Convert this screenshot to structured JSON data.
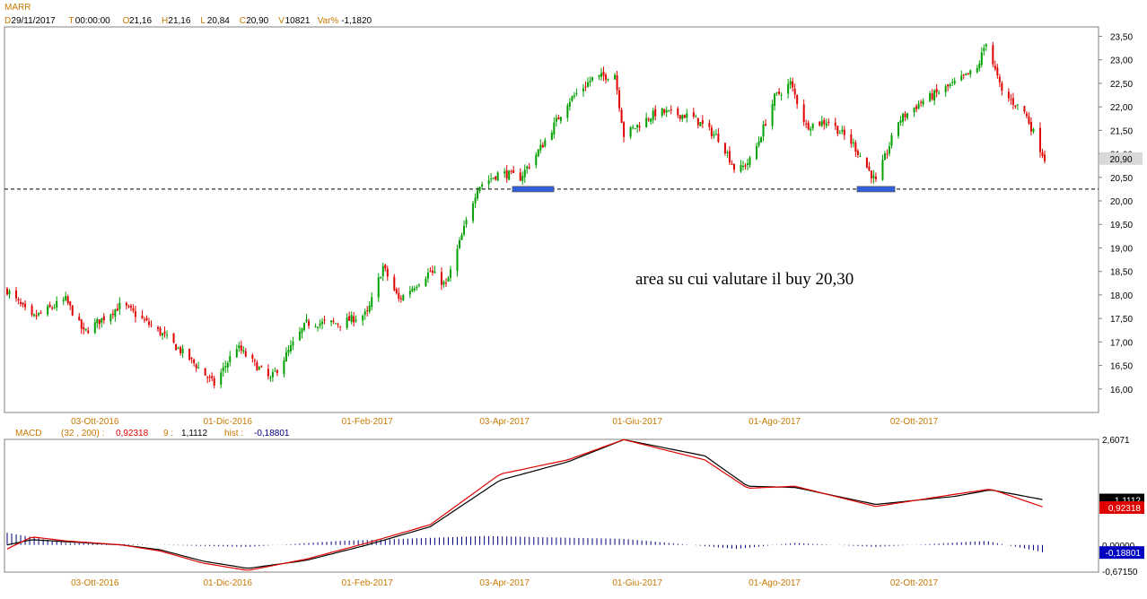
{
  "header": {
    "symbol": "MARR",
    "fields": [
      {
        "key": "D",
        "value": "29/11/2017"
      },
      {
        "key": "T",
        "value": "00:00:00"
      },
      {
        "key": "O",
        "value": "21,16"
      },
      {
        "key": "H",
        "value": "21,16"
      },
      {
        "key": "L",
        "value": "20,84"
      },
      {
        "key": "C",
        "value": "20,90"
      },
      {
        "key": "V",
        "value": "10821"
      },
      {
        "key": "Var%",
        "value": "-1,1820"
      }
    ]
  },
  "price_panel": {
    "last_price_label": "20,90",
    "annotation": "area su cui valutare il buy 20,30"
  },
  "macd_panel": {
    "label": "MACD",
    "params": "(32 , 200) :",
    "macd_value": "0,92318",
    "signal_period": "9 :",
    "signal_value": "1,1112",
    "hist_label": "hist :",
    "hist_value": "-0,18801",
    "axis_top": "2,6071",
    "axis_zero": "0,00000",
    "axis_bottom": "-0,67150"
  },
  "colors": {
    "up": "#00a000",
    "down": "#e00000",
    "macd_line": "#e00000",
    "signal_line": "#000000",
    "histogram": "#00007f",
    "axis_text_orange": "#c87800",
    "support_box": "#3060e0"
  },
  "chart_data": [
    {
      "type": "candlestick",
      "title": "MARR",
      "x_ticks": [
        "03-Ott-2016",
        "01-Dic-2016",
        "01-Feb-2017",
        "03-Apr-2017",
        "01-Giu-2017",
        "01-Ago-2017",
        "02-Ott-2017"
      ],
      "y_ticks": [
        "16,00",
        "16,50",
        "17,00",
        "17,50",
        "18,00",
        "18,50",
        "19,00",
        "19,50",
        "20,00",
        "20,50",
        "21,00",
        "21,50",
        "22,00",
        "22,50",
        "23,00",
        "23,50"
      ],
      "ylim": [
        15.5,
        23.7
      ],
      "support_level": 20.25,
      "anchors_close": [
        {
          "date": "2016-08-25",
          "close": 18.1
        },
        {
          "date": "2016-09-05",
          "close": 17.5
        },
        {
          "date": "2016-09-20",
          "close": 17.9
        },
        {
          "date": "2016-09-28",
          "close": 17.2
        },
        {
          "date": "2016-10-15",
          "close": 17.8
        },
        {
          "date": "2016-11-01",
          "close": 17.2
        },
        {
          "date": "2016-11-15",
          "close": 16.6
        },
        {
          "date": "2016-11-25",
          "close": 16.1
        },
        {
          "date": "2016-12-05",
          "close": 16.9
        },
        {
          "date": "2016-12-20",
          "close": 16.2
        },
        {
          "date": "2017-01-05",
          "close": 17.4
        },
        {
          "date": "2017-01-20",
          "close": 17.4
        },
        {
          "date": "2017-02-01",
          "close": 17.6
        },
        {
          "date": "2017-02-08",
          "close": 18.6
        },
        {
          "date": "2017-02-15",
          "close": 17.9
        },
        {
          "date": "2017-03-01",
          "close": 18.5
        },
        {
          "date": "2017-03-08",
          "close": 18.2
        },
        {
          "date": "2017-03-22",
          "close": 20.3
        },
        {
          "date": "2017-04-01",
          "close": 20.6
        },
        {
          "date": "2017-04-10",
          "close": 20.5
        },
        {
          "date": "2017-04-20",
          "close": 21.2
        },
        {
          "date": "2017-05-01",
          "close": 22.1
        },
        {
          "date": "2017-05-12",
          "close": 22.6
        },
        {
          "date": "2017-05-22",
          "close": 22.7
        },
        {
          "date": "2017-05-26",
          "close": 21.4
        },
        {
          "date": "2017-06-10",
          "close": 21.9
        },
        {
          "date": "2017-06-25",
          "close": 21.8
        },
        {
          "date": "2017-07-08",
          "close": 21.3
        },
        {
          "date": "2017-07-15",
          "close": 20.6
        },
        {
          "date": "2017-07-22",
          "close": 20.9
        },
        {
          "date": "2017-08-01",
          "close": 22.2
        },
        {
          "date": "2017-08-08",
          "close": 22.5
        },
        {
          "date": "2017-08-15",
          "close": 21.6
        },
        {
          "date": "2017-08-25",
          "close": 21.7
        },
        {
          "date": "2017-09-05",
          "close": 21.2
        },
        {
          "date": "2017-09-15",
          "close": 20.4
        },
        {
          "date": "2017-09-25",
          "close": 21.7
        },
        {
          "date": "2017-10-05",
          "close": 22.1
        },
        {
          "date": "2017-10-20",
          "close": 22.5
        },
        {
          "date": "2017-10-30",
          "close": 22.8
        },
        {
          "date": "2017-11-03",
          "close": 23.4
        },
        {
          "date": "2017-11-10",
          "close": 22.3
        },
        {
          "date": "2017-11-20",
          "close": 21.9
        },
        {
          "date": "2017-11-29",
          "close": 20.9
        }
      ]
    },
    {
      "type": "line",
      "title": "MACD",
      "x_ticks": [
        "03-Ott-2016",
        "01-Dic-2016",
        "01-Feb-2017",
        "03-Apr-2017",
        "01-Giu-2017",
        "01-Ago-2017",
        "02-Ott-2017"
      ],
      "ylim": [
        -0.6715,
        2.6071
      ],
      "series": [
        {
          "name": "MACD",
          "points": [
            {
              "date": "2016-08-25",
              "value": -0.1
            },
            {
              "date": "2016-09-05",
              "value": 0.2
            },
            {
              "date": "2016-09-20",
              "value": 0.1
            },
            {
              "date": "2016-10-15",
              "value": 0.0
            },
            {
              "date": "2016-11-01",
              "value": -0.15
            },
            {
              "date": "2016-11-20",
              "value": -0.45
            },
            {
              "date": "2016-12-10",
              "value": -0.63
            },
            {
              "date": "2017-01-05",
              "value": -0.35
            },
            {
              "date": "2017-02-01",
              "value": 0.05
            },
            {
              "date": "2017-03-01",
              "value": 0.5
            },
            {
              "date": "2017-04-01",
              "value": 1.75
            },
            {
              "date": "2017-05-01",
              "value": 2.1
            },
            {
              "date": "2017-05-26",
              "value": 2.6
            },
            {
              "date": "2017-07-01",
              "value": 2.1
            },
            {
              "date": "2017-07-20",
              "value": 1.4
            },
            {
              "date": "2017-08-10",
              "value": 1.45
            },
            {
              "date": "2017-09-15",
              "value": 0.95
            },
            {
              "date": "2017-10-20",
              "value": 1.25
            },
            {
              "date": "2017-11-05",
              "value": 1.38
            },
            {
              "date": "2017-11-29",
              "value": 0.92318
            }
          ]
        },
        {
          "name": "9",
          "points": [
            {
              "date": "2016-08-25",
              "value": 0.0
            },
            {
              "date": "2016-09-05",
              "value": 0.13
            },
            {
              "date": "2016-09-20",
              "value": 0.08
            },
            {
              "date": "2016-10-15",
              "value": 0.0
            },
            {
              "date": "2016-11-01",
              "value": -0.12
            },
            {
              "date": "2016-11-20",
              "value": -0.4
            },
            {
              "date": "2016-12-10",
              "value": -0.58
            },
            {
              "date": "2017-01-05",
              "value": -0.38
            },
            {
              "date": "2017-02-01",
              "value": 0.0
            },
            {
              "date": "2017-03-01",
              "value": 0.45
            },
            {
              "date": "2017-04-01",
              "value": 1.6
            },
            {
              "date": "2017-05-01",
              "value": 2.05
            },
            {
              "date": "2017-05-26",
              "value": 2.6
            },
            {
              "date": "2017-07-01",
              "value": 2.2
            },
            {
              "date": "2017-07-20",
              "value": 1.45
            },
            {
              "date": "2017-08-10",
              "value": 1.42
            },
            {
              "date": "2017-09-15",
              "value": 1.0
            },
            {
              "date": "2017-10-20",
              "value": 1.2
            },
            {
              "date": "2017-11-05",
              "value": 1.36
            },
            {
              "date": "2017-11-29",
              "value": 1.1112
            }
          ]
        },
        {
          "name": "hist",
          "points": [
            {
              "date": "2016-08-25",
              "value": 0.3
            },
            {
              "date": "2016-09-20",
              "value": 0.05
            },
            {
              "date": "2016-12-10",
              "value": -0.05
            },
            {
              "date": "2017-01-20",
              "value": 0.1
            },
            {
              "date": "2017-03-25",
              "value": 0.22
            },
            {
              "date": "2017-05-26",
              "value": 0.15
            },
            {
              "date": "2017-07-15",
              "value": -0.1
            },
            {
              "date": "2017-08-10",
              "value": 0.05
            },
            {
              "date": "2017-09-15",
              "value": -0.05
            },
            {
              "date": "2017-11-03",
              "value": 0.1
            },
            {
              "date": "2017-11-29",
              "value": -0.18801
            }
          ]
        }
      ]
    }
  ]
}
